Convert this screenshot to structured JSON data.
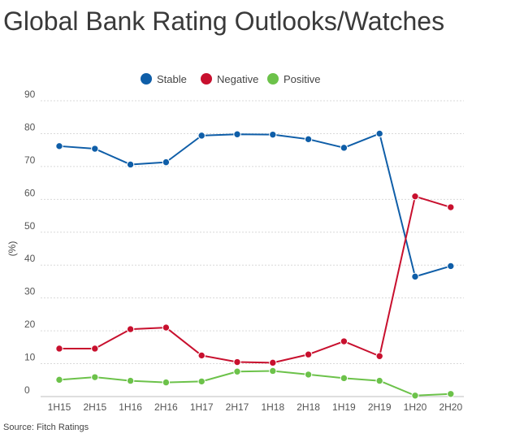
{
  "title": "Global Bank Rating Outlooks/Watches",
  "source": "Source: Fitch Ratings",
  "chart_data": {
    "type": "line",
    "title": "Global Bank Rating Outlooks/Watches",
    "xlabel": "",
    "ylabel": "(%)",
    "ylim": [
      0,
      90
    ],
    "yticks": [
      0,
      10,
      20,
      30,
      40,
      50,
      60,
      70,
      80,
      90
    ],
    "grid": true,
    "legend_position": "top-center",
    "categories": [
      "1H15",
      "2H15",
      "1H16",
      "2H16",
      "1H17",
      "2H17",
      "1H18",
      "2H18",
      "1H19",
      "2H19",
      "1H20",
      "2H20"
    ],
    "series": [
      {
        "name": "Stable",
        "color": "#0f5ea8",
        "values": [
          76.2,
          75.4,
          70.6,
          71.3,
          79.4,
          79.8,
          79.7,
          78.3,
          75.7,
          80.0,
          36.5,
          39.7
        ]
      },
      {
        "name": "Negative",
        "color": "#c8102e",
        "values": [
          14.6,
          14.6,
          20.5,
          21.0,
          12.5,
          10.5,
          10.3,
          12.8,
          16.8,
          12.3,
          60.9,
          57.6
        ]
      },
      {
        "name": "Positive",
        "color": "#6cc24a",
        "values": [
          5.1,
          5.9,
          4.8,
          4.3,
          4.6,
          7.6,
          7.8,
          6.7,
          5.6,
          4.8,
          0.3,
          0.8
        ]
      }
    ]
  }
}
